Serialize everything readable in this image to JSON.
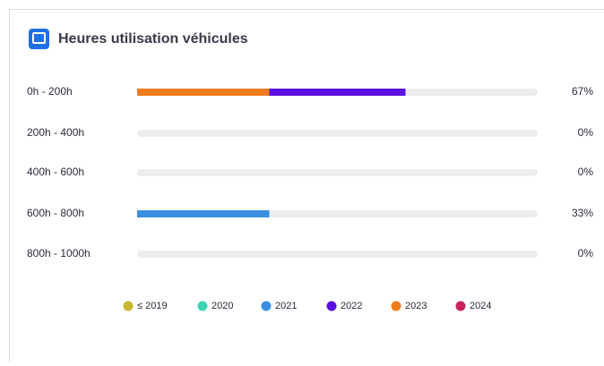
{
  "chart_data": {
    "type": "stacked-hbar",
    "title": "Heures utilisation véhicules",
    "categories": [
      "0h - 200h",
      "200h - 400h",
      "400h - 600h",
      "600h - 800h",
      "800h - 1000h"
    ],
    "series": [
      {
        "name": "≤ 2019",
        "color": "#c9b632",
        "values": [
          0,
          0,
          0,
          0,
          0
        ]
      },
      {
        "name": "2020",
        "color": "#3fd3b6",
        "values": [
          0,
          0,
          0,
          0,
          0
        ]
      },
      {
        "name": "2021",
        "color": "#3a8fe0",
        "values": [
          0,
          0,
          0,
          33,
          0
        ]
      },
      {
        "name": "2022",
        "color": "#5a10e0",
        "values": [
          34,
          0,
          0,
          0,
          0
        ]
      },
      {
        "name": "2023",
        "color": "#f07b1c",
        "values": [
          33,
          0,
          0,
          0,
          0
        ]
      },
      {
        "name": "2024",
        "color": "#c8245c",
        "values": [
          0,
          0,
          0,
          0,
          0
        ]
      }
    ],
    "stack_order": [
      "2023",
      "2022",
      "2021",
      "≤ 2019",
      "2020",
      "2024"
    ],
    "totals": [
      67,
      0,
      0,
      33,
      0
    ],
    "total_labels": [
      "67%",
      "0%",
      "0%",
      "33%",
      "0%"
    ],
    "xlim": [
      0,
      100
    ]
  }
}
